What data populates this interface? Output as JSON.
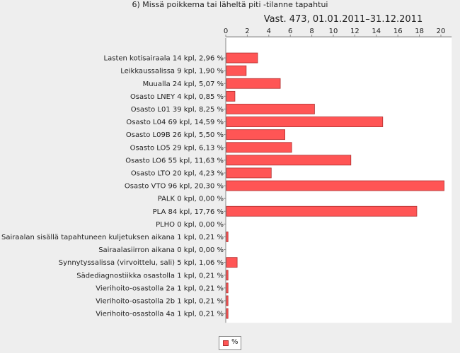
{
  "chart_data": {
    "type": "bar",
    "orientation": "horizontal",
    "title": "6) Missä poikkema tai läheltä piti -tilanne tapahtui",
    "subtitle": "Vast. 473, 01.01.2011–31.12.2011",
    "xlim": [
      0,
      21
    ],
    "xticks": [
      0,
      2,
      4,
      6,
      8,
      10,
      12,
      14,
      16,
      18,
      20
    ],
    "xaxis_position": "top",
    "grid": false,
    "categories": [
      "Lasten kotisairaala 14 kpl, 2,96 %",
      "Leikkaussalissa 9 kpl, 1,90 %",
      "Muualla 24 kpl, 5,07 %",
      "Osasto  LNEY 4 kpl, 0,85 %",
      "Osasto L01 39 kpl, 8,25 %",
      "Osasto L04 69 kpl, 14,59 %",
      "Osasto L09B 26 kpl, 5,50 %",
      "Osasto LO5 29 kpl, 6,13 %",
      "Osasto LO6 55 kpl, 11,63 %",
      "Osasto LTO 20 kpl, 4,23 %",
      "Osasto VTO 96 kpl, 20,30 %",
      "PALK 0 kpl, 0,00 %",
      "PLA 84 kpl, 17,76 %",
      "PLHO 0 kpl, 0,00 %",
      "Sairaalan sisällä tapahtuneen kuljetuksen aikana 1 kpl, 0,21 %",
      "Sairaalasiirron aikana 0 kpl, 0,00 %",
      "Synnytyssalissa (virvoittelu, sali) 5 kpl, 1,06 %",
      "Sädediagnostiikka osastolla 1 kpl, 0,21 %",
      "Vierihoito-osastolla 2a 1 kpl, 0,21 %",
      "Vierihoito-osastolla 2b 1 kpl, 0,21 %",
      "Vierihoito-osastolla 4a 1 kpl, 0,21 %"
    ],
    "series": [
      {
        "name": "%",
        "color": "#ff5555",
        "values": [
          2.96,
          1.9,
          5.07,
          0.85,
          8.25,
          14.59,
          5.5,
          6.13,
          11.63,
          4.23,
          20.3,
          0.0,
          17.76,
          0.0,
          0.21,
          0.0,
          1.06,
          0.21,
          0.21,
          0.21,
          0.21
        ]
      }
    ],
    "legend": {
      "position": "bottom",
      "label": "%"
    }
  }
}
